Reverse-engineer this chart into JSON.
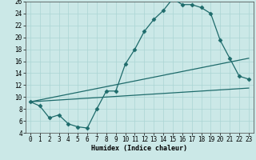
{
  "xlabel": "Humidex (Indice chaleur)",
  "background_color": "#cbe8e7",
  "grid_color": "#aad4d4",
  "line_color": "#1e6b6b",
  "xlim": [
    -0.5,
    23.5
  ],
  "ylim": [
    4,
    26
  ],
  "yticks": [
    4,
    6,
    8,
    10,
    12,
    14,
    16,
    18,
    20,
    22,
    24,
    26
  ],
  "xticks": [
    0,
    1,
    2,
    3,
    4,
    5,
    6,
    7,
    8,
    9,
    10,
    11,
    12,
    13,
    14,
    15,
    16,
    17,
    18,
    19,
    20,
    21,
    22,
    23
  ],
  "line1_x": [
    0,
    1,
    2,
    3,
    4,
    5,
    6,
    7,
    8,
    9,
    10,
    11,
    12,
    13,
    14,
    15,
    16,
    17,
    18,
    19,
    20,
    21,
    22,
    23
  ],
  "line1_y": [
    9.2,
    8.5,
    6.5,
    7.0,
    5.5,
    5.0,
    4.8,
    8.0,
    11.0,
    11.0,
    15.5,
    18.0,
    21.0,
    23.0,
    24.5,
    26.5,
    25.5,
    25.5,
    25.0,
    24.0,
    19.5,
    16.5,
    13.5,
    13.0
  ],
  "line2_x": [
    0,
    23
  ],
  "line2_y": [
    9.2,
    11.5
  ],
  "line3_x": [
    0,
    23
  ],
  "line3_y": [
    9.2,
    16.5
  ],
  "xlabel_fontsize": 6,
  "tick_fontsize": 5.5
}
